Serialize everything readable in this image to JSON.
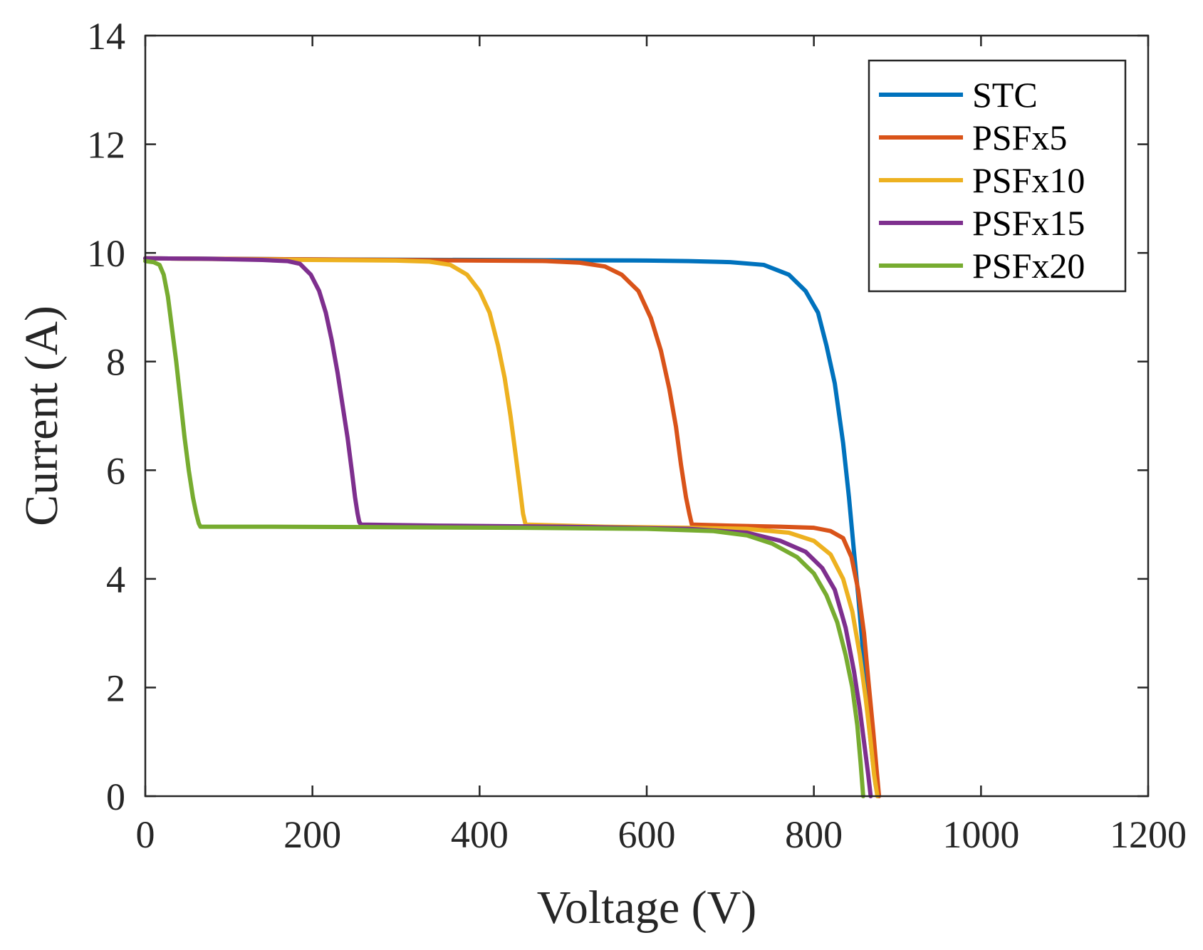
{
  "chart_data": {
    "type": "line",
    "title": "",
    "xlabel": "Voltage (V)",
    "ylabel": "Current (A)",
    "xlim": [
      0,
      1200
    ],
    "ylim": [
      0,
      14
    ],
    "xticks": [
      0,
      200,
      400,
      600,
      800,
      1000,
      1200
    ],
    "yticks": [
      0,
      2,
      4,
      6,
      8,
      10,
      12,
      14
    ],
    "xtick_labels": [
      "0",
      "200",
      "400",
      "600",
      "800",
      "1000",
      "1200"
    ],
    "ytick_labels": [
      "0",
      "2",
      "4",
      "6",
      "8",
      "10",
      "12",
      "14"
    ],
    "grid": false,
    "legend_position": "top-right",
    "series": [
      {
        "name": "STC",
        "color": "#0072BD",
        "x": [
          0,
          200,
          400,
          600,
          650,
          700,
          740,
          770,
          790,
          805,
          815,
          825,
          835,
          842,
          848,
          853,
          858,
          862,
          866,
          870,
          874,
          877
        ],
        "y": [
          9.9,
          9.88,
          9.87,
          9.86,
          9.85,
          9.83,
          9.78,
          9.6,
          9.3,
          8.9,
          8.3,
          7.6,
          6.5,
          5.5,
          4.5,
          3.7,
          2.8,
          2.0,
          1.3,
          0.7,
          0.2,
          0
        ]
      },
      {
        "name": "PSFx5",
        "color": "#D95319",
        "x": [
          0,
          200,
          400,
          480,
          520,
          550,
          570,
          590,
          605,
          617,
          627,
          635,
          641,
          647,
          651,
          654,
          700,
          760,
          800,
          820,
          835,
          845,
          853,
          860,
          866,
          871,
          875,
          878
        ],
        "y": [
          9.9,
          9.88,
          9.86,
          9.85,
          9.82,
          9.75,
          9.6,
          9.3,
          8.8,
          8.2,
          7.5,
          6.8,
          6.1,
          5.5,
          5.2,
          5.0,
          4.98,
          4.96,
          4.94,
          4.88,
          4.75,
          4.4,
          3.8,
          3.0,
          2.0,
          1.2,
          0.5,
          0
        ]
      },
      {
        "name": "PSFx10",
        "color": "#EDB120",
        "x": [
          0,
          200,
          300,
          340,
          365,
          385,
          400,
          412,
          422,
          430,
          437,
          443,
          448,
          452,
          455,
          550,
          650,
          720,
          770,
          800,
          820,
          835,
          846,
          855,
          862,
          868,
          872,
          876
        ],
        "y": [
          9.9,
          9.87,
          9.86,
          9.84,
          9.78,
          9.6,
          9.3,
          8.9,
          8.3,
          7.7,
          7.0,
          6.3,
          5.7,
          5.2,
          5.0,
          4.96,
          4.94,
          4.92,
          4.85,
          4.7,
          4.45,
          4.0,
          3.4,
          2.6,
          1.8,
          1.0,
          0.4,
          0
        ]
      },
      {
        "name": "PSFx15",
        "color": "#7E2F8E",
        "x": [
          0,
          80,
          140,
          170,
          185,
          198,
          208,
          216,
          223,
          230,
          236,
          242,
          247,
          251,
          254,
          256,
          258,
          350,
          500,
          650,
          720,
          760,
          790,
          810,
          825,
          838,
          848,
          855,
          860,
          865,
          868
        ],
        "y": [
          9.9,
          9.89,
          9.87,
          9.85,
          9.8,
          9.6,
          9.3,
          8.9,
          8.4,
          7.8,
          7.2,
          6.6,
          6.0,
          5.5,
          5.2,
          5.05,
          5.0,
          4.98,
          4.96,
          4.92,
          4.85,
          4.7,
          4.5,
          4.2,
          3.8,
          3.1,
          2.3,
          1.6,
          1.0,
          0.4,
          0
        ]
      },
      {
        "name": "PSFx20",
        "color": "#77AC30",
        "x": [
          0,
          10,
          17,
          22,
          27,
          32,
          37,
          42,
          47,
          52,
          57,
          61,
          64,
          66,
          150,
          300,
          450,
          600,
          680,
          720,
          750,
          780,
          800,
          815,
          828,
          838,
          846,
          852,
          856,
          859
        ],
        "y": [
          9.85,
          9.83,
          9.78,
          9.6,
          9.2,
          8.6,
          8.0,
          7.3,
          6.6,
          6.0,
          5.5,
          5.2,
          5.02,
          4.96,
          4.96,
          4.95,
          4.94,
          4.92,
          4.88,
          4.8,
          4.65,
          4.4,
          4.1,
          3.7,
          3.2,
          2.6,
          2.0,
          1.3,
          0.6,
          0
        ]
      }
    ]
  }
}
